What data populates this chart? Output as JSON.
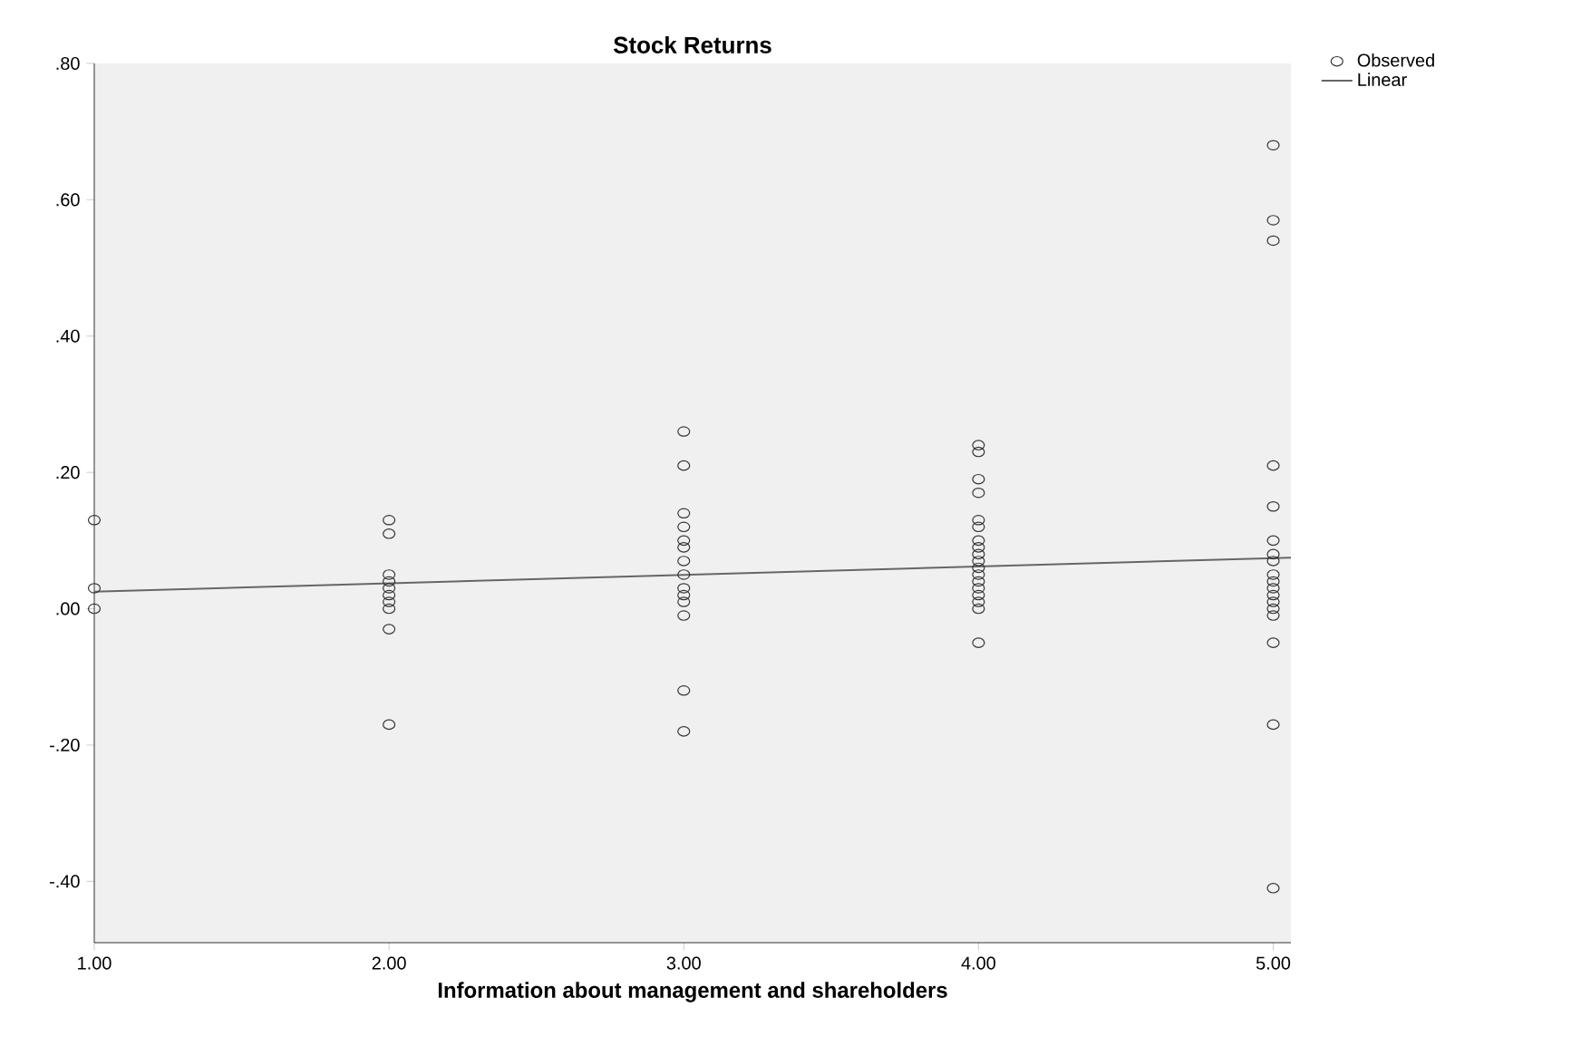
{
  "chart_data": {
    "type": "scatter",
    "title": "Stock Returns",
    "xlabel": "Information about management and shareholders",
    "xlim": [
      1,
      5.06
    ],
    "ylim": [
      -0.49,
      0.8
    ],
    "xticks": [
      {
        "value": 1,
        "label": "1.00"
      },
      {
        "value": 2,
        "label": "2.00"
      },
      {
        "value": 3,
        "label": "3.00"
      },
      {
        "value": 4,
        "label": "4.00"
      },
      {
        "value": 5,
        "label": "5.00"
      }
    ],
    "yticks": [
      {
        "value": -0.4,
        "label": "-.40"
      },
      {
        "value": -0.2,
        "label": "-.20"
      },
      {
        "value": 0,
        "label": ".00"
      },
      {
        "value": 0.2,
        "label": ".20"
      },
      {
        "value": 0.4,
        "label": ".40"
      },
      {
        "value": 0.6,
        "label": ".60"
      },
      {
        "value": 0.8,
        "label": ".80"
      }
    ],
    "legend": "top right",
    "series": [
      {
        "name": "Observed",
        "marker": "circle",
        "color": "#333333",
        "x": [
          1,
          1,
          1,
          2,
          2,
          2,
          2,
          2,
          2,
          2,
          2,
          2,
          2,
          3,
          3,
          3,
          3,
          3,
          3,
          3,
          3,
          3,
          3,
          3,
          3,
          3,
          3,
          4,
          4,
          4,
          4,
          4,
          4,
          4,
          4,
          4,
          4,
          4,
          4,
          4,
          4,
          4,
          4,
          4,
          4,
          5,
          5,
          5,
          5,
          5,
          5,
          5,
          5,
          5,
          5,
          5,
          5,
          5,
          5,
          5,
          5,
          5,
          5
        ],
        "values": [
          0.13,
          0.03,
          0.0,
          0.13,
          0.11,
          0.05,
          0.04,
          0.03,
          0.02,
          0.01,
          0.0,
          -0.03,
          -0.17,
          0.26,
          0.21,
          0.14,
          0.12,
          0.1,
          0.09,
          0.07,
          0.05,
          0.03,
          0.02,
          0.01,
          -0.01,
          -0.12,
          -0.18,
          0.24,
          0.23,
          0.19,
          0.17,
          0.13,
          0.12,
          0.1,
          0.09,
          0.08,
          0.07,
          0.06,
          0.05,
          0.04,
          0.03,
          0.02,
          0.01,
          0.0,
          -0.05,
          0.68,
          0.57,
          0.54,
          0.21,
          0.15,
          0.1,
          0.08,
          0.07,
          0.05,
          0.04,
          0.03,
          0.02,
          0.01,
          0.0,
          -0.01,
          -0.05,
          -0.17,
          -0.41
        ]
      },
      {
        "name": "Linear",
        "type": "line",
        "color": "#666666",
        "x": [
          1,
          5.06
        ],
        "values": [
          0.025,
          0.075
        ]
      }
    ]
  }
}
